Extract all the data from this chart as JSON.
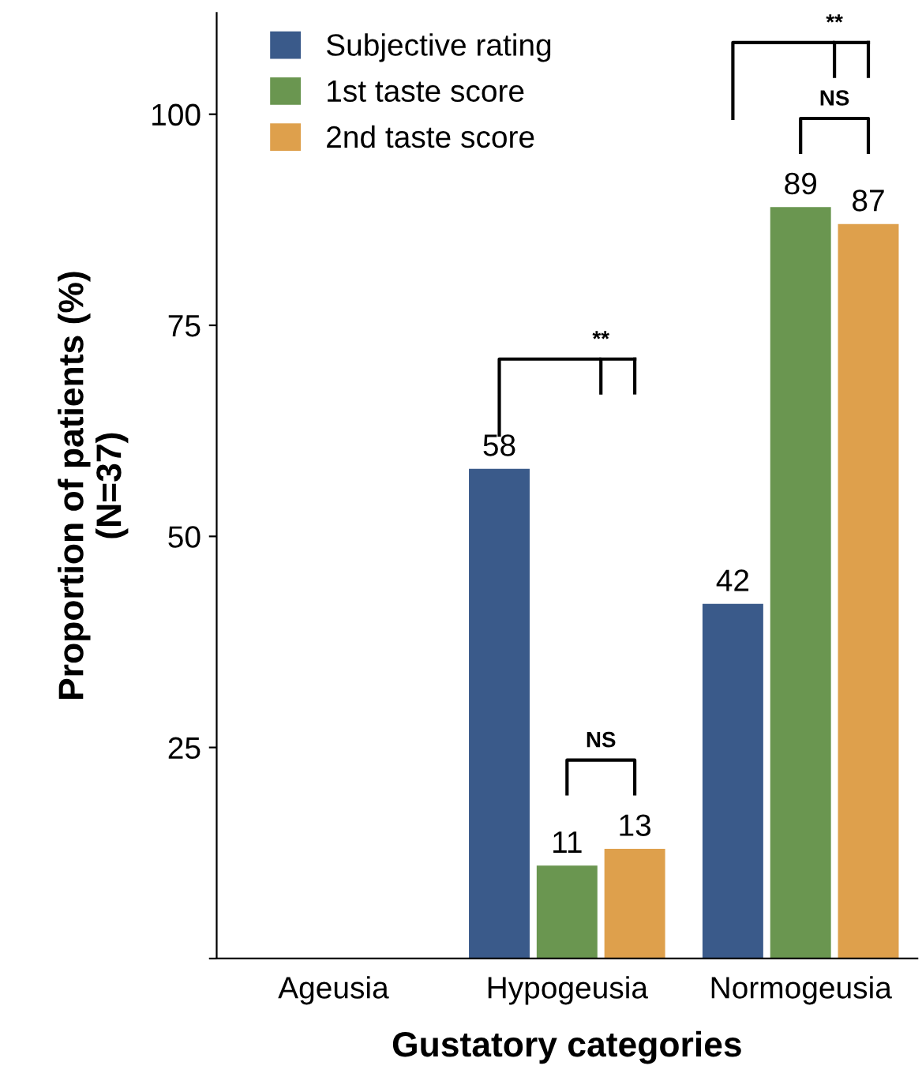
{
  "chart_data": {
    "type": "bar",
    "xlabel": "Gustatory categories",
    "ylabel": "Proportion of patients (%)\n(N=37)",
    "categories": [
      "Ageusia",
      "Hypogeusia",
      "Normogeusia"
    ],
    "series": [
      {
        "name": "Subjective rating",
        "color": "#3a5a8a",
        "values": [
          0,
          58,
          42
        ],
        "value_labels": [
          null,
          "58",
          "42"
        ]
      },
      {
        "name": "1st taste score",
        "color": "#6a9650",
        "values": [
          0,
          11,
          89
        ],
        "value_labels": [
          null,
          "11",
          "89"
        ]
      },
      {
        "name": "2nd taste score",
        "color": "#dea04c",
        "values": [
          0,
          13,
          87
        ],
        "value_labels": [
          null,
          "13",
          "87"
        ]
      }
    ],
    "annotations": [
      "**",
      "NS",
      "**",
      "NS"
    ],
    "ylim": [
      0,
      112
    ],
    "yticks": [
      {
        "value": 0,
        "label": null
      },
      25,
      50,
      75,
      100
    ],
    "grid": false,
    "legend": "top left"
  }
}
